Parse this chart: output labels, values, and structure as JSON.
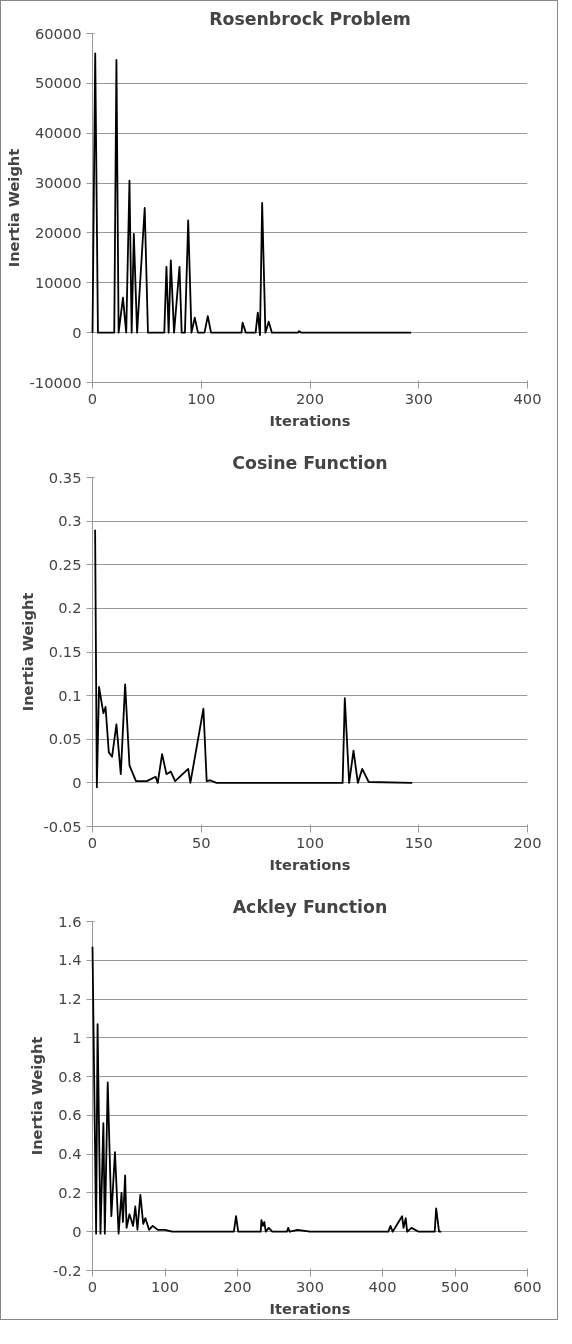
{
  "chart_data": [
    {
      "type": "line",
      "title": "Rosenbrock Problem",
      "xlabel": "Iterations",
      "ylabel": "Inertia Weight",
      "color": "#000000",
      "grid": "y",
      "xlim": [
        0,
        400
      ],
      "ylim": [
        -10000,
        60000
      ],
      "xticks": [
        0,
        100,
        200,
        300,
        400
      ],
      "yticks": [
        -10000,
        0,
        10000,
        20000,
        30000,
        40000,
        50000,
        60000
      ],
      "x": [
        0,
        2.5,
        5,
        20,
        22,
        24,
        28,
        31,
        34,
        36,
        38,
        41,
        48,
        51,
        66,
        68,
        70,
        72,
        75,
        80,
        82,
        85,
        88,
        91,
        94,
        97,
        103,
        106,
        109,
        137,
        138,
        141,
        150,
        152,
        154,
        156,
        159,
        162,
        165,
        189,
        190,
        192,
        293
      ],
      "values": [
        0,
        56000,
        0,
        0,
        54700,
        0,
        7000,
        0,
        30500,
        0,
        19800,
        0,
        25000,
        0,
        0,
        13200,
        0,
        14500,
        0,
        13200,
        0,
        0,
        22500,
        0,
        3000,
        0,
        0,
        3300,
        0,
        0,
        2000,
        0,
        0,
        4000,
        -500,
        26000,
        0,
        2200,
        0,
        0,
        300,
        0,
        0
      ]
    },
    {
      "type": "line",
      "title": "Cosine Function",
      "xlabel": "Iterations",
      "ylabel": "Inertia Weight",
      "color": "#000000",
      "grid": "y",
      "xlim": [
        0,
        200
      ],
      "ylim": [
        -0.05,
        0.35
      ],
      "xticks": [
        0,
        50,
        100,
        150,
        200
      ],
      "yticks": [
        -0.05,
        0,
        0.05,
        0.1,
        0.15,
        0.2,
        0.25,
        0.3,
        0.35
      ],
      "x": [
        1.2,
        2,
        3,
        5,
        6,
        7.5,
        9,
        11,
        13,
        15,
        17,
        20,
        25,
        29,
        30,
        32,
        34,
        36,
        38,
        44,
        45,
        51,
        52.5,
        54,
        57,
        115,
        116,
        118,
        120,
        122,
        124,
        127,
        147
      ],
      "values": [
        0.29,
        -0.005,
        0.11,
        0.08,
        0.087,
        0.035,
        0.03,
        0.067,
        0.01,
        0.113,
        0.02,
        0.002,
        0.002,
        0.007,
        0,
        0.033,
        0.01,
        0.013,
        0.002,
        0.016,
        0,
        0.085,
        0.002,
        0.003,
        0,
        0,
        0.097,
        0,
        0.037,
        0,
        0.016,
        0.001,
        0
      ]
    },
    {
      "type": "line",
      "title": "Ackley Function",
      "xlabel": "Iterations",
      "ylabel": "Inertia Weight",
      "color": "#000000",
      "grid": "y",
      "xlim": [
        0,
        600
      ],
      "ylim": [
        -0.2,
        1.6
      ],
      "xticks": [
        0,
        100,
        200,
        300,
        400,
        500,
        600
      ],
      "yticks": [
        -0.2,
        0,
        0.2,
        0.4,
        0.6,
        0.8,
        1,
        1.2,
        1.4,
        1.6
      ],
      "x": [
        0,
        5,
        7,
        11,
        15,
        17,
        21,
        26,
        31,
        36,
        40,
        42,
        45,
        47,
        51,
        56,
        59,
        62,
        66,
        70,
        73,
        78,
        83,
        90,
        100,
        110,
        195,
        198,
        201,
        232,
        233,
        235,
        237,
        239,
        243,
        248,
        268,
        270,
        272,
        283,
        300,
        408,
        411,
        414,
        427,
        429,
        432,
        434,
        440,
        450,
        472,
        474,
        478,
        481
      ],
      "values": [
        1.47,
        -0.01,
        1.07,
        -0.01,
        0.56,
        -0.01,
        0.77,
        0.08,
        0.41,
        -0.01,
        0.2,
        0.05,
        0.29,
        0.02,
        0.09,
        0.03,
        0.13,
        0.01,
        0.19,
        0.04,
        0.07,
        0.01,
        0.03,
        0.01,
        0.01,
        0,
        0,
        0.08,
        0,
        0,
        0.06,
        0.03,
        0.05,
        0,
        0.02,
        0,
        0,
        0.02,
        0,
        0.01,
        0,
        0,
        0.03,
        0,
        0.08,
        0.02,
        0.07,
        0,
        0.02,
        0,
        0,
        0.12,
        0,
        0
      ]
    }
  ]
}
